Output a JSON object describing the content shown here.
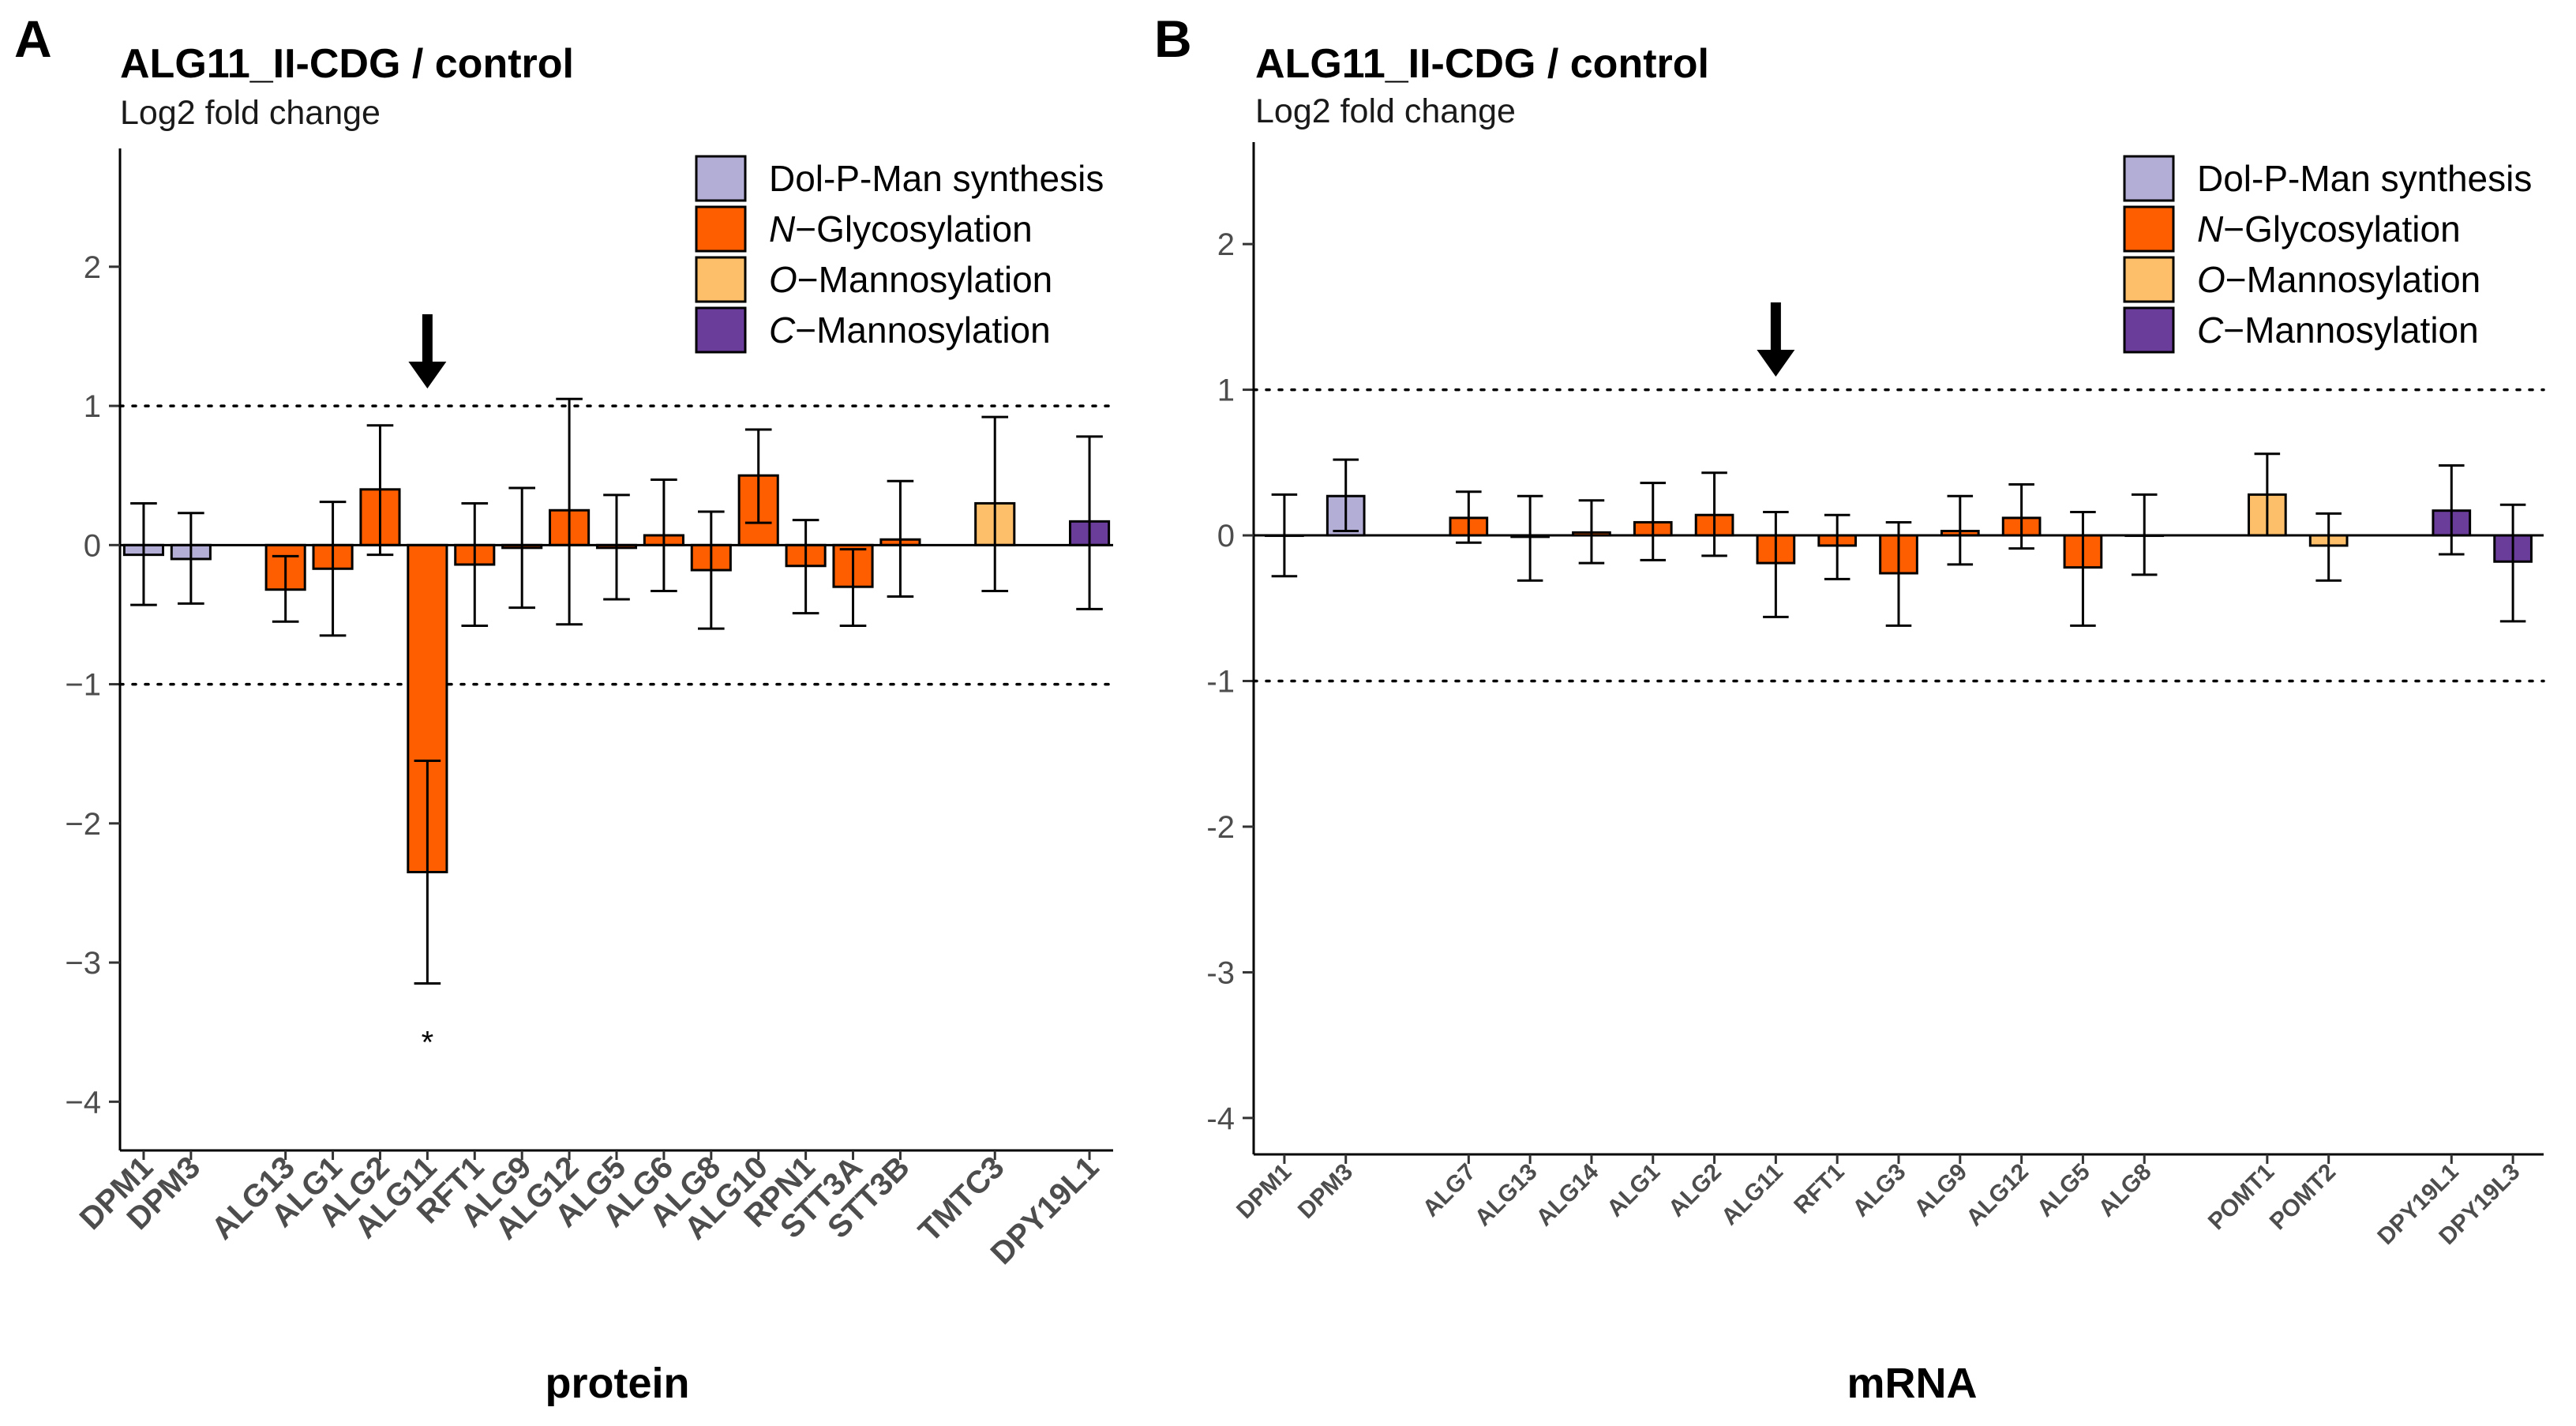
{
  "colors": {
    "Dol-P-Man synthesis": "#b3aed6",
    "N-Glycosylation": "#fe5e00",
    "O-Mannosylation": "#fdbf6a",
    "C-Mannosylation": "#6a3d9b"
  },
  "legend": [
    {
      "key": "Dol-P-Man synthesis",
      "italic_prefix": "",
      "rest": "Dol-P-Man synthesis"
    },
    {
      "key": "N-Glycosylation",
      "italic_prefix": "N",
      "rest": "−Glycosylation"
    },
    {
      "key": "O-Mannosylation",
      "italic_prefix": "O",
      "rest": "−Mannosylation"
    },
    {
      "key": "C-Mannosylation",
      "italic_prefix": "C",
      "rest": "−Mannosylation"
    }
  ],
  "chart_data": [
    {
      "panel": "A",
      "type": "bar",
      "title": "ALG11_II-CDG / control",
      "ylabel": "Log2 fold change",
      "xlabel": "protein",
      "ylim": [
        -4.35,
        2.85
      ],
      "yticks": [
        2,
        1,
        0,
        -1,
        -2,
        -3,
        -4
      ],
      "ytick_labels": [
        "2",
        "1",
        "0",
        "−1",
        "−2",
        "−3",
        "−4"
      ],
      "reference_lines": [
        1,
        -1
      ],
      "arrow_at": "ALG11",
      "significance": [
        {
          "category": "ALG11",
          "label": "*"
        }
      ],
      "categories": [
        {
          "name": "DPM1",
          "value": -0.07,
          "err_low": -0.43,
          "err_high": 0.3,
          "group": "Dol-P-Man synthesis"
        },
        {
          "name": "DPM3",
          "value": -0.1,
          "err_low": -0.42,
          "err_high": 0.23,
          "group": "Dol-P-Man synthesis"
        },
        {
          "name": "ALG13",
          "value": -0.32,
          "err_low": -0.55,
          "err_high": -0.08,
          "group": "N-Glycosylation"
        },
        {
          "name": "ALG1",
          "value": -0.17,
          "err_low": -0.65,
          "err_high": 0.31,
          "group": "N-Glycosylation"
        },
        {
          "name": "ALG2",
          "value": 0.4,
          "err_low": -0.07,
          "err_high": 0.86,
          "group": "N-Glycosylation"
        },
        {
          "name": "ALG11",
          "value": -2.35,
          "err_low": -3.15,
          "err_high": -1.55,
          "group": "N-Glycosylation"
        },
        {
          "name": "RFT1",
          "value": -0.14,
          "err_low": -0.58,
          "err_high": 0.3,
          "group": "N-Glycosylation"
        },
        {
          "name": "ALG9",
          "value": -0.02,
          "err_low": -0.45,
          "err_high": 0.41,
          "group": "N-Glycosylation"
        },
        {
          "name": "ALG12",
          "value": 0.25,
          "err_low": -0.57,
          "err_high": 1.05,
          "group": "N-Glycosylation"
        },
        {
          "name": "ALG5",
          "value": -0.02,
          "err_low": -0.39,
          "err_high": 0.36,
          "group": "N-Glycosylation"
        },
        {
          "name": "ALG6",
          "value": 0.07,
          "err_low": -0.33,
          "err_high": 0.47,
          "group": "N-Glycosylation"
        },
        {
          "name": "ALG8",
          "value": -0.18,
          "err_low": -0.6,
          "err_high": 0.24,
          "group": "N-Glycosylation"
        },
        {
          "name": "ALG10",
          "value": 0.5,
          "err_low": 0.16,
          "err_high": 0.83,
          "group": "N-Glycosylation"
        },
        {
          "name": "RPN1",
          "value": -0.15,
          "err_low": -0.49,
          "err_high": 0.18,
          "group": "N-Glycosylation"
        },
        {
          "name": "STT3A",
          "value": -0.3,
          "err_low": -0.58,
          "err_high": -0.03,
          "group": "N-Glycosylation"
        },
        {
          "name": "STT3B",
          "value": 0.04,
          "err_low": -0.37,
          "err_high": 0.46,
          "group": "N-Glycosylation"
        },
        {
          "name": "TMTC3",
          "value": 0.3,
          "err_low": -0.33,
          "err_high": 0.92,
          "group": "O-Mannosylation"
        },
        {
          "name": "DPY19L1",
          "value": 0.17,
          "err_low": -0.46,
          "err_high": 0.78,
          "group": "C-Mannosylation"
        }
      ]
    },
    {
      "panel": "B",
      "type": "bar",
      "title": "ALG11_II-CDG / control",
      "ylabel": "Log2 fold change",
      "xlabel": "mRNA",
      "ylim": [
        -4.25,
        2.7
      ],
      "yticks": [
        2,
        1,
        0,
        -1,
        -2,
        -3,
        -4
      ],
      "ytick_labels": [
        "2",
        "1",
        "0",
        "-1",
        "-2",
        "-3",
        "-4"
      ],
      "reference_lines": [
        1,
        -1
      ],
      "arrow_at": "ALG11",
      "significance": [],
      "categories": [
        {
          "name": "DPM1",
          "value": 0.0,
          "err_low": -0.28,
          "err_high": 0.28,
          "group": "Dol-P-Man synthesis"
        },
        {
          "name": "DPM3",
          "value": 0.27,
          "err_low": 0.03,
          "err_high": 0.52,
          "group": "Dol-P-Man synthesis"
        },
        {
          "name": "ALG7",
          "value": 0.12,
          "err_low": -0.05,
          "err_high": 0.3,
          "group": "N-Glycosylation"
        },
        {
          "name": "ALG13",
          "value": -0.01,
          "err_low": -0.31,
          "err_high": 0.27,
          "group": "N-Glycosylation"
        },
        {
          "name": "ALG14",
          "value": 0.02,
          "err_low": -0.19,
          "err_high": 0.24,
          "group": "N-Glycosylation"
        },
        {
          "name": "ALG1",
          "value": 0.09,
          "err_low": -0.17,
          "err_high": 0.36,
          "group": "N-Glycosylation"
        },
        {
          "name": "ALG2",
          "value": 0.14,
          "err_low": -0.14,
          "err_high": 0.43,
          "group": "N-Glycosylation"
        },
        {
          "name": "ALG11",
          "value": -0.19,
          "err_low": -0.56,
          "err_high": 0.16,
          "group": "N-Glycosylation"
        },
        {
          "name": "RFT1",
          "value": -0.07,
          "err_low": -0.3,
          "err_high": 0.14,
          "group": "N-Glycosylation"
        },
        {
          "name": "ALG3",
          "value": -0.26,
          "err_low": -0.62,
          "err_high": 0.09,
          "group": "N-Glycosylation"
        },
        {
          "name": "ALG9",
          "value": 0.03,
          "err_low": -0.2,
          "err_high": 0.27,
          "group": "N-Glycosylation"
        },
        {
          "name": "ALG12",
          "value": 0.12,
          "err_low": -0.09,
          "err_high": 0.35,
          "group": "N-Glycosylation"
        },
        {
          "name": "ALG5",
          "value": -0.22,
          "err_low": -0.62,
          "err_high": 0.16,
          "group": "N-Glycosylation"
        },
        {
          "name": "ALG8",
          "value": 0.0,
          "err_low": -0.27,
          "err_high": 0.28,
          "group": "N-Glycosylation"
        },
        {
          "name": "POMT1",
          "value": 0.28,
          "err_low": 0.0,
          "err_high": 0.56,
          "group": "O-Mannosylation"
        },
        {
          "name": "POMT2",
          "value": -0.07,
          "err_low": -0.31,
          "err_high": 0.15,
          "group": "O-Mannosylation"
        },
        {
          "name": "DPY19L1",
          "value": 0.17,
          "err_low": -0.13,
          "err_high": 0.48,
          "group": "C-Mannosylation"
        },
        {
          "name": "DPY19L3",
          "value": -0.18,
          "err_low": -0.59,
          "err_high": 0.21,
          "group": "C-Mannosylation"
        }
      ]
    }
  ]
}
